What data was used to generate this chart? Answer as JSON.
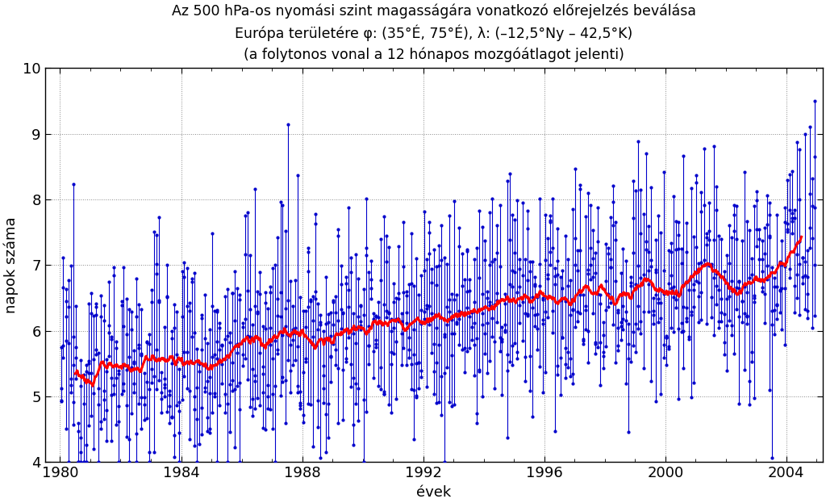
{
  "title_line1": "Az 500 hPa-os nyomási szint magasságára vonatkozó előrejelzés beválása",
  "title_line2": "Európa területére φ: (35°É, 75°É), λ: (–12,5°Ny – 42,5°K)",
  "title_line3": "(a folytonos vonal a 12 hónapos mozgóátlagot jelenti)",
  "xlabel": "évek",
  "ylabel": "napok száma",
  "ylim": [
    4,
    10
  ],
  "yticks": [
    4,
    5,
    6,
    7,
    8,
    9,
    10
  ],
  "xticks": [
    1980,
    1984,
    1988,
    1992,
    1996,
    2000,
    2004
  ],
  "xlim": [
    1979.5,
    2005.2
  ],
  "dot_color": "#0000cc",
  "line_color": "#ff0000",
  "background_color": "#ffffff",
  "grid_color": "#888888",
  "title_fontsize": 12.5,
  "axis_fontsize": 13,
  "tick_fontsize": 13
}
